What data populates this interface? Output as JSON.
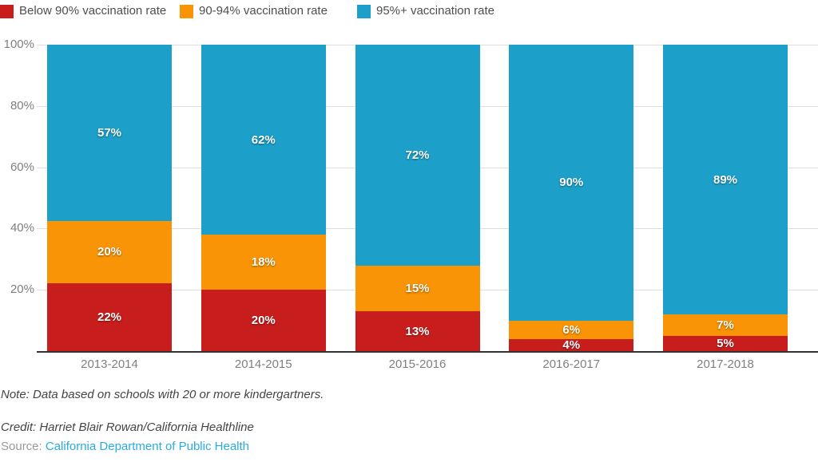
{
  "legend": {
    "position": "top"
  },
  "chart_data": {
    "type": "bar",
    "stacked": true,
    "title": "",
    "xlabel": "",
    "ylabel": "",
    "categories": [
      "2013-2014",
      "2014-2015",
      "2015-2016",
      "2016-2017",
      "2017-2018"
    ],
    "series": [
      {
        "name": "Below 90% vaccination rate",
        "color": "#C71E1D",
        "values": [
          22,
          20,
          13,
          4,
          5
        ]
      },
      {
        "name": "90-94% vaccination rate",
        "color": "#F89406",
        "values": [
          20,
          18,
          15,
          6,
          7
        ]
      },
      {
        "name": "95%+ vaccination rate",
        "color": "#1CA0C9",
        "values": [
          57,
          62,
          72,
          90,
          89
        ]
      }
    ],
    "ylim": [
      0,
      100
    ],
    "y_ticks": [
      20,
      40,
      60,
      80,
      100
    ],
    "y_tick_suffix": "%",
    "value_label_suffix": "%",
    "grid": true,
    "legend_position": "top",
    "colors": {
      "gridline": "#dfdfdf",
      "baseline": "#333333",
      "axis_text": "#7f7f7f",
      "legend_text": "#4d4d4d"
    }
  },
  "footer": {
    "note": "Note: Data based on schools with 20 or more kindergartners.",
    "credit": "Credit: Harriet Blair Rowan/California Healthline",
    "source_label": "Source:",
    "source_link": "California Department of Public Health",
    "source_link_color": "#29ABE2"
  }
}
